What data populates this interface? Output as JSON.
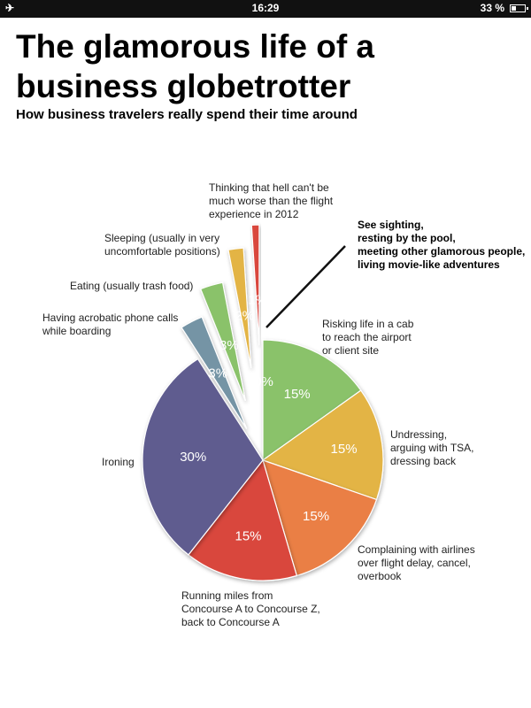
{
  "status_bar": {
    "time": "16:29",
    "battery": "33 %"
  },
  "title": "The glamorous life of a business globetrotter",
  "subtitle": "How business travelers really spend their time around",
  "chart_data": {
    "type": "pie",
    "slices": [
      {
        "label": "See sighting, resting by the pool, meeting other glamorous people, living movie-like adventures",
        "value": 0,
        "value_label": "0%",
        "color": "#ffffff",
        "exploded": false
      },
      {
        "label": "Risking life in a cab to reach the airport or client site",
        "value": 15,
        "value_label": "15%",
        "color": "#8ac26a",
        "exploded": false
      },
      {
        "label": "Undressing, arguing with TSA, dressing back",
        "value": 15,
        "value_label": "15%",
        "color": "#e3b445",
        "exploded": false
      },
      {
        "label": "Complaining with airlines over flight delay, cancel, overbook",
        "value": 15,
        "value_label": "15%",
        "color": "#ea7f45",
        "exploded": false
      },
      {
        "label": "Running miles from Concourse A to Concourse Z, back to Concourse A",
        "value": 15,
        "value_label": "15%",
        "color": "#d9463d",
        "exploded": false
      },
      {
        "label": "Ironing",
        "value": 30,
        "value_label": "30%",
        "color": "#5f5b8f",
        "exploded": false
      },
      {
        "label": "Having acrobatic phone calls while boarding",
        "value": 3,
        "value_label": "3%",
        "color": "#7494a5",
        "exploded": true
      },
      {
        "label": "Eating (usually trash food)",
        "value": 3,
        "value_label": "3%",
        "color": "#8ac26a",
        "exploded": true
      },
      {
        "label": "Sleeping (usually in very uncomfortable positions)",
        "value": 2,
        "value_label": "2%",
        "color": "#e3b445",
        "exploded": true
      },
      {
        "label": "Thinking that hell can't be much worse than the flight experience in 2012",
        "value": 1,
        "value_label": "1%",
        "color": "#d9463d",
        "exploded": true
      }
    ],
    "labels": {
      "hell": [
        "Thinking that hell can't be",
        "much worse than the flight",
        "experience in 2012"
      ],
      "sleeping": [
        "Sleeping (usually in very",
        "uncomfortable positions)"
      ],
      "eating": [
        "Eating (usually trash food)"
      ],
      "phone": [
        "Having acrobatic phone calls",
        "while boarding"
      ],
      "sightseeing": [
        "See sighting,",
        "resting by the pool,",
        "meeting other glamorous people,",
        "living movie-like adventures"
      ],
      "cab": [
        "Risking life in a cab",
        "to reach the airport",
        "or client site"
      ],
      "tsa": [
        "Undressing,",
        "arguing with TSA,",
        "dressing back"
      ],
      "airlines": [
        "Complaining with airlines",
        "over flight delay, cancel,",
        "overbook"
      ],
      "running": [
        "Running miles from",
        "Concourse A to Concourse Z,",
        "back to Concourse A"
      ],
      "ironing": [
        "Ironing"
      ]
    }
  }
}
